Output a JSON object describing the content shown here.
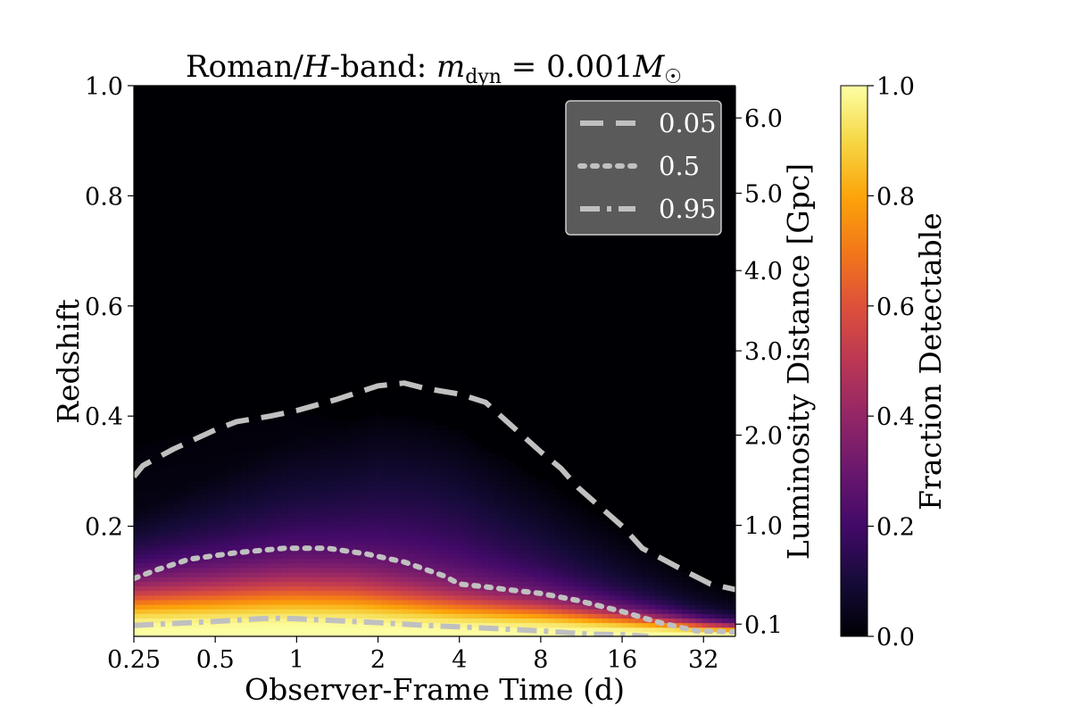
{
  "chart_data": {
    "type": "heatmap",
    "title": "Roman/H-band: m_dyn = 0.001M_☉",
    "title_parts": {
      "prefix": "Roman/",
      "band": "H",
      "band_suffix": "-band: ",
      "var": "m",
      "var_sub": "dyn",
      "eq": " = 0.001",
      "unit": "M",
      "unit_sym": "☉"
    },
    "xlabel": "Observer-Frame Time (d)",
    "ylabel": "Redshift",
    "y2label": "Luminosity Distance [Gpc]",
    "colorbar_label": "Fraction Detectable",
    "x_scale": "log2",
    "xlim": [
      0.25,
      42
    ],
    "ylim": [
      0.0,
      1.0
    ],
    "x_ticks": [
      {
        "value": 0.25,
        "label": "0.25"
      },
      {
        "value": 0.5,
        "label": "0.5"
      },
      {
        "value": 1,
        "label": "1"
      },
      {
        "value": 2,
        "label": "2"
      },
      {
        "value": 4,
        "label": "4"
      },
      {
        "value": 8,
        "label": "8"
      },
      {
        "value": 16,
        "label": "16"
      },
      {
        "value": 32,
        "label": "32"
      }
    ],
    "y_ticks": [
      {
        "value": 0.2,
        "label": "0.2"
      },
      {
        "value": 0.4,
        "label": "0.4"
      },
      {
        "value": 0.6,
        "label": "0.6"
      },
      {
        "value": 0.8,
        "label": "0.8"
      },
      {
        "value": 1.0,
        "label": "1.0"
      }
    ],
    "y2_ticks": [
      {
        "z": 0.0222,
        "label": "0.1"
      },
      {
        "z": 0.2016,
        "label": "1.0"
      },
      {
        "z": 0.3654,
        "label": "2.0"
      },
      {
        "z": 0.5185,
        "label": "3.0"
      },
      {
        "z": 0.6642,
        "label": "4.0"
      },
      {
        "z": 0.8047,
        "label": "5.0"
      },
      {
        "z": 0.9414,
        "label": "6.0"
      }
    ],
    "colorbar": {
      "colormap": "inferno",
      "range": [
        0.0,
        1.0
      ],
      "ticks": [
        {
          "value": 0.0,
          "label": "0.0"
        },
        {
          "value": 0.2,
          "label": "0.2"
        },
        {
          "value": 0.4,
          "label": "0.4"
        },
        {
          "value": 0.6,
          "label": "0.6"
        },
        {
          "value": 0.8,
          "label": "0.8"
        },
        {
          "value": 1.0,
          "label": "1.0"
        }
      ]
    },
    "contour_color": "#c0c0c0",
    "contours": [
      {
        "level": 0.05,
        "label": "0.05",
        "style": "dashed",
        "points": [
          [
            0.25,
            0.29
          ],
          [
            0.27,
            0.31
          ],
          [
            0.35,
            0.34
          ],
          [
            0.5,
            0.375
          ],
          [
            0.6,
            0.39
          ],
          [
            0.8,
            0.4
          ],
          [
            1.0,
            0.41
          ],
          [
            1.4,
            0.43
          ],
          [
            2.0,
            0.455
          ],
          [
            2.5,
            0.46
          ],
          [
            3.0,
            0.45
          ],
          [
            4.0,
            0.44
          ],
          [
            5.0,
            0.425
          ],
          [
            6.0,
            0.39
          ],
          [
            8.0,
            0.335
          ],
          [
            9.5,
            0.305
          ],
          [
            11.0,
            0.27
          ],
          [
            16.0,
            0.2
          ],
          [
            19.0,
            0.16
          ],
          [
            27.0,
            0.12
          ],
          [
            34.0,
            0.095
          ],
          [
            42.0,
            0.085
          ]
        ]
      },
      {
        "level": 0.5,
        "label": "0.5",
        "style": "dotted",
        "points": [
          [
            0.25,
            0.105
          ],
          [
            0.3,
            0.12
          ],
          [
            0.4,
            0.14
          ],
          [
            0.6,
            0.152
          ],
          [
            0.9,
            0.16
          ],
          [
            1.3,
            0.16
          ],
          [
            1.8,
            0.15
          ],
          [
            2.5,
            0.135
          ],
          [
            3.5,
            0.11
          ],
          [
            4.0,
            0.095
          ],
          [
            5.0,
            0.09
          ],
          [
            6.0,
            0.085
          ],
          [
            8.0,
            0.078
          ],
          [
            11.0,
            0.065
          ],
          [
            16.0,
            0.045
          ],
          [
            22.0,
            0.025
          ],
          [
            30.0,
            0.01
          ],
          [
            42.0,
            0.008
          ]
        ]
      },
      {
        "level": 0.95,
        "label": "0.95",
        "style": "dashdot",
        "points": [
          [
            0.25,
            0.02
          ],
          [
            0.5,
            0.027
          ],
          [
            0.8,
            0.033
          ],
          [
            1.0,
            0.032
          ],
          [
            2.0,
            0.025
          ],
          [
            3.0,
            0.02
          ],
          [
            5.0,
            0.015
          ],
          [
            8.0,
            0.01
          ],
          [
            12.0,
            0.004
          ],
          [
            16.0,
            0.003
          ],
          [
            20.0,
            0.0
          ]
        ]
      }
    ],
    "legend": {
      "placement": "upper right",
      "entries": [
        {
          "label": "0.05",
          "style": "dashed"
        },
        {
          "label": "0.5",
          "style": "dotted"
        },
        {
          "label": "0.95",
          "style": "dashdot"
        }
      ]
    },
    "fraction_profile": {
      "x": [
        0.25,
        0.5,
        0.8,
        1.0,
        1.6,
        2.0,
        3.0,
        4.0,
        8.0,
        16.0,
        32.0,
        42.0
      ],
      "z_scale": [
        0.075,
        0.082,
        0.087,
        0.088,
        0.084,
        0.078,
        0.068,
        0.062,
        0.052,
        0.037,
        0.022,
        0.018
      ],
      "tail": [
        0.2,
        0.2,
        0.21,
        0.22,
        0.24,
        0.26,
        0.27,
        0.26,
        0.2,
        0.13,
        0.07,
        0.05
      ],
      "tail_top": [
        0.22,
        0.3,
        0.35,
        0.37,
        0.39,
        0.41,
        0.4,
        0.38,
        0.29,
        0.19,
        0.1,
        0.08
      ]
    }
  }
}
